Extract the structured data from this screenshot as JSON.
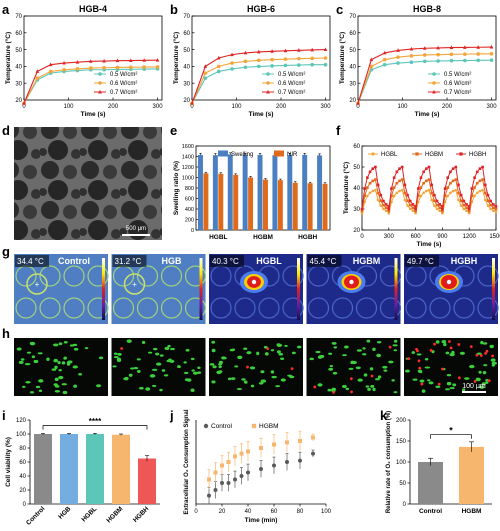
{
  "panel_letters": [
    "a",
    "b",
    "c",
    "d",
    "e",
    "f",
    "g",
    "h",
    "i",
    "j",
    "k"
  ],
  "colors": {
    "teal": "#5cc6b8",
    "orange": "#f3a53a",
    "red": "#e02424",
    "blue": "#4a7fc1",
    "dark_orange": "#e06a1c",
    "gray": "#8a8a8a",
    "light_blue": "#74aee0",
    "light_orange": "#f7b66e",
    "light_red": "#ef5656",
    "dark_gray": "#5a5a5a"
  },
  "panel_d": {
    "scale_label": "500 μm"
  },
  "panel_g": {
    "temperatures": [
      "34.4 °C",
      "31.2 °C",
      "40.3 °C",
      "45.4 °C",
      "49.7 °C"
    ],
    "labels": [
      "Control",
      "HGB",
      "HGBL",
      "HGBM",
      "HGBH"
    ]
  },
  "panel_h": {
    "scale_label": "100 μm"
  },
  "chart_data": [
    {
      "panel": "a",
      "type": "line",
      "title": "HGB-4",
      "xlabel": "Time (s)",
      "ylabel": "Temperature (°C)",
      "xlim": [
        0,
        310
      ],
      "ylim": [
        20,
        70
      ],
      "xticks": [
        0,
        100,
        200,
        300
      ],
      "yticks": [
        20,
        30,
        40,
        50,
        60,
        70
      ],
      "legend": "bottom-right",
      "x": [
        0,
        30,
        60,
        90,
        120,
        150,
        180,
        210,
        240,
        270,
        300
      ],
      "series": [
        {
          "name": "0.5 W/cm²",
          "color": "teal",
          "marker": "circle",
          "values": [
            18,
            32,
            36,
            37,
            37.5,
            38,
            38,
            38.2,
            38.3,
            38.4,
            38.5
          ]
        },
        {
          "name": "0.6 W/cm²",
          "color": "orange",
          "marker": "circle",
          "values": [
            18,
            33,
            37,
            38,
            38.5,
            39,
            39.2,
            39.4,
            39.5,
            39.6,
            39.7
          ]
        },
        {
          "name": "0.7 W/cm²",
          "color": "red",
          "marker": "triangle",
          "values": [
            18,
            37,
            41,
            42,
            42.5,
            43,
            43.2,
            43.4,
            43.5,
            43.6,
            43.7
          ]
        }
      ]
    },
    {
      "panel": "b",
      "type": "line",
      "title": "HGB-6",
      "xlabel": "Time (s)",
      "ylabel": "Temperature (°C)",
      "xlim": [
        0,
        310
      ],
      "ylim": [
        20,
        70
      ],
      "xticks": [
        0,
        100,
        200,
        300
      ],
      "yticks": [
        20,
        30,
        40,
        50,
        60,
        70
      ],
      "legend": "bottom-right",
      "x": [
        0,
        30,
        60,
        90,
        120,
        150,
        180,
        210,
        240,
        270,
        300
      ],
      "series": [
        {
          "name": "0.5 W/cm²",
          "color": "teal",
          "marker": "circle",
          "values": [
            18,
            33,
            37,
            38.5,
            39.5,
            40,
            40.3,
            40.6,
            40.8,
            41,
            41
          ]
        },
        {
          "name": "0.6 W/cm²",
          "color": "orange",
          "marker": "circle",
          "values": [
            18,
            36,
            40,
            42,
            43,
            43.6,
            44,
            44.3,
            44.6,
            44.8,
            45
          ]
        },
        {
          "name": "0.7 W/cm²",
          "color": "red",
          "marker": "triangle",
          "values": [
            18,
            40,
            45,
            47,
            48,
            48.6,
            49,
            49.3,
            49.6,
            49.8,
            50
          ]
        }
      ]
    },
    {
      "panel": "c",
      "type": "line",
      "title": "HGB-8",
      "xlabel": "Time (s)",
      "ylabel": "Temperature (°C)",
      "xlim": [
        0,
        310
      ],
      "ylim": [
        20,
        70
      ],
      "xticks": [
        0,
        100,
        200,
        300
      ],
      "yticks": [
        20,
        30,
        40,
        50,
        60,
        70
      ],
      "legend": "bottom-right",
      "x": [
        0,
        30,
        60,
        90,
        120,
        150,
        180,
        210,
        240,
        270,
        300
      ],
      "series": [
        {
          "name": "0.5 W/cm²",
          "color": "teal",
          "marker": "circle",
          "values": [
            18,
            38,
            41,
            42,
            42.5,
            43,
            43.2,
            43.4,
            43.5,
            43.6,
            43.7
          ]
        },
        {
          "name": "0.6 W/cm²",
          "color": "orange",
          "marker": "circle",
          "values": [
            18,
            40,
            44,
            45.5,
            46.3,
            46.8,
            47,
            47.2,
            47.3,
            47.4,
            47.5
          ]
        },
        {
          "name": "0.7 W/cm²",
          "color": "red",
          "marker": "triangle",
          "values": [
            18,
            44,
            48,
            49.5,
            50.3,
            50.8,
            51,
            51.2,
            51.3,
            51.4,
            51.5
          ]
        }
      ]
    },
    {
      "panel": "e",
      "type": "bar",
      "xlabel": "",
      "ylabel": "Swelling ratio (%)",
      "ylim": [
        0,
        1600
      ],
      "yticks": [
        0,
        200,
        400,
        600,
        800,
        1000,
        1200,
        1400,
        1600
      ],
      "legend": "top",
      "group_labels": [
        "HGBL",
        "HGBM",
        "HGBH"
      ],
      "series": [
        {
          "name": "Swelling",
          "color": "blue",
          "values": [
            1430,
            1425,
            1440,
            1430,
            1430,
            1425,
            1430,
            1430,
            1420
          ]
        },
        {
          "name": "NIR",
          "color": "dark_orange",
          "values": [
            1080,
            1070,
            1050,
            1000,
            960,
            950,
            900,
            890,
            880
          ]
        }
      ],
      "errors": [
        30,
        20
      ]
    },
    {
      "panel": "f",
      "type": "line",
      "xlabel": "Time (s)",
      "ylabel": "Temperature (°C)",
      "xlim": [
        0,
        1500
      ],
      "ylim": [
        20,
        60
      ],
      "xticks": [
        0,
        300,
        600,
        900,
        1200,
        1500
      ],
      "yticks": [
        20,
        30,
        40,
        50,
        60
      ],
      "legend": "top",
      "series": [
        {
          "name": "HGBL",
          "color": "orange",
          "marker": "circle",
          "peak": 39,
          "trough": 28
        },
        {
          "name": "HGBM",
          "color": "dark_orange",
          "marker": "square",
          "peak": 44,
          "trough": 29
        },
        {
          "name": "HGBH",
          "color": "red",
          "marker": "square",
          "peak": 50,
          "trough": 30
        }
      ],
      "cycles": 5,
      "cycle_period": 300
    },
    {
      "panel": "i",
      "type": "bar",
      "xlabel": "",
      "ylabel": "Cell viability (%)",
      "ylim": [
        0,
        120
      ],
      "yticks": [
        0,
        20,
        40,
        60,
        80,
        100,
        120
      ],
      "categories": [
        "Control",
        "HGB",
        "HGBL",
        "HGBM",
        "HGBH"
      ],
      "values": [
        100,
        100,
        100,
        99,
        65
      ],
      "errors": [
        1,
        1,
        1,
        1,
        4
      ],
      "colors": [
        "gray",
        "light_blue",
        "teal",
        "light_orange",
        "light_red"
      ],
      "significance": "****"
    },
    {
      "panel": "j",
      "type": "scatter",
      "xlabel": "Time (min)",
      "ylabel": "Extracellular O₂ Consumption Signal",
      "xlim": [
        0,
        100
      ],
      "ylim": [
        0,
        1.2
      ],
      "xticks": [
        0,
        20,
        40,
        60,
        80,
        100
      ],
      "legend": "top-left",
      "x": [
        10,
        15,
        20,
        25,
        30,
        35,
        40,
        50,
        60,
        70,
        80,
        90
      ],
      "series": [
        {
          "name": "Control",
          "color": "dark_gray",
          "marker": "circle",
          "values": [
            0.12,
            0.2,
            0.3,
            0.3,
            0.35,
            0.4,
            0.45,
            0.5,
            0.55,
            0.6,
            0.62,
            0.72
          ],
          "errors": [
            0.12,
            0.12,
            0.12,
            0.12,
            0.12,
            0.12,
            0.12,
            0.12,
            0.12,
            0.12,
            0.12,
            0.05
          ]
        },
        {
          "name": "HGBM",
          "color": "light_orange",
          "marker": "square",
          "values": [
            0.35,
            0.45,
            0.55,
            0.6,
            0.68,
            0.72,
            0.75,
            0.8,
            0.85,
            0.88,
            0.9,
            0.95
          ],
          "errors": [
            0.14,
            0.14,
            0.14,
            0.14,
            0.14,
            0.14,
            0.14,
            0.14,
            0.14,
            0.14,
            0.14,
            0.05
          ]
        }
      ]
    },
    {
      "panel": "k",
      "type": "bar",
      "xlabel": "",
      "ylabel": "Relative rate of O₂ consumption (%)",
      "ylim": [
        0,
        200
      ],
      "yticks": [
        0,
        50,
        100,
        150,
        200
      ],
      "categories": [
        "Control",
        "HGBM"
      ],
      "values": [
        100,
        136
      ],
      "errors": [
        9,
        12
      ],
      "colors": [
        "gray",
        "light_orange"
      ],
      "significance": "*"
    }
  ]
}
